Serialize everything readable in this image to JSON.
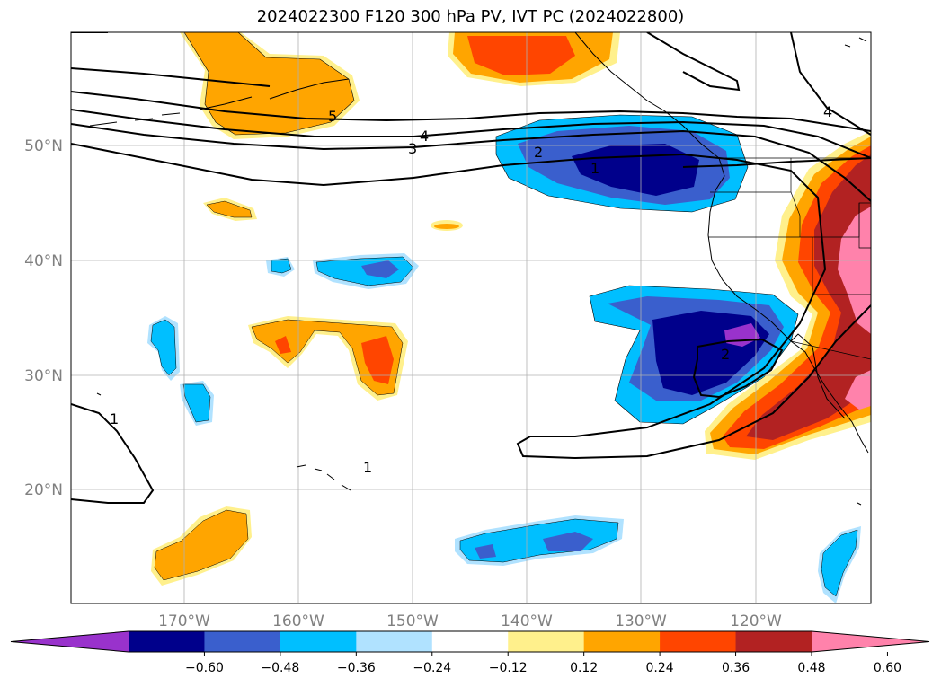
{
  "title": "2024022300 F120 300 hPa PV, IVT PC (2024022800)",
  "map": {
    "lon_labels": [
      "170°W",
      "160°W",
      "150°W",
      "140°W",
      "130°W",
      "120°W"
    ],
    "lat_labels": [
      "50°N",
      "40°N",
      "30°N",
      "20°N"
    ],
    "contour_labels": [
      "5",
      "4",
      "3",
      "2",
      "1",
      "2",
      "1",
      "1",
      "4"
    ]
  },
  "colorbar": {
    "colors": [
      "#9932cc",
      "#00008b",
      "#3a5fcd",
      "#00bfff",
      "#b0e2ff",
      "#ffffff",
      "#fff08c",
      "#ffa500",
      "#ff4500",
      "#b22222",
      "#ff82ab"
    ],
    "tick_labels": [
      "−0.60",
      "−0.48",
      "−0.36",
      "−0.24",
      "−0.12",
      "0.12",
      "0.24",
      "0.36",
      "0.48",
      "0.60"
    ]
  }
}
